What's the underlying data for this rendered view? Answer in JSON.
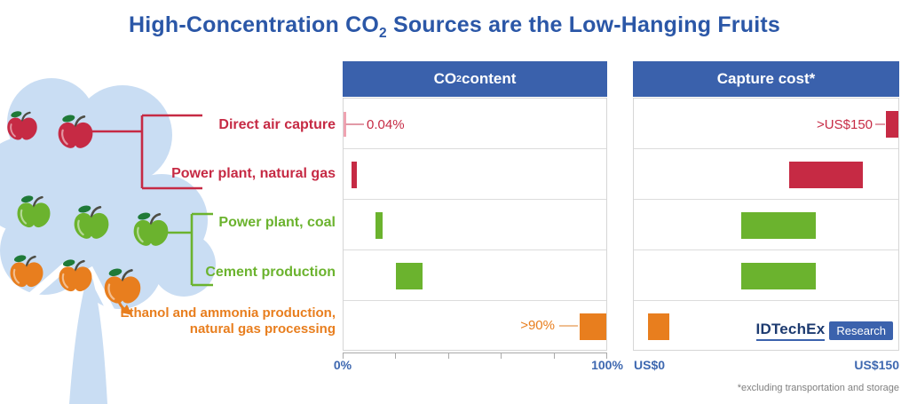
{
  "title": {
    "pre": "High-Concentration CO",
    "sub": "2",
    "post": " Sources are the Low-Hanging Fruits"
  },
  "labels": [
    {
      "text": "Direct air capture",
      "color": "red"
    },
    {
      "text": "Power plant, natural gas",
      "color": "red"
    },
    {
      "text": "Power plant, coal",
      "color": "green"
    },
    {
      "text": "Cement production",
      "color": "green"
    },
    {
      "line1": "Ethanol and ammonia production,",
      "line2": "natural gas processing",
      "color": "orange"
    }
  ],
  "panels": [
    {
      "header": {
        "pre": "CO",
        "sub": "2",
        "post": " content"
      },
      "axis_min": "0%",
      "axis_max": "100%"
    },
    {
      "header": {
        "pre": "Capture cost*",
        "sub": "",
        "post": ""
      },
      "axis_min": "US$0",
      "axis_max": "US$150"
    }
  ],
  "annotations": {
    "dac_co2": "0.04%",
    "ethanol_co2": ">90%",
    "dac_cost": ">US$150"
  },
  "logo": {
    "brand": "IDTechEx",
    "sub": "Research"
  },
  "footnote": "*excluding transportation and storage",
  "colors": {
    "red": "#C62A44",
    "green": "#6BB32E",
    "orange": "#E87E1E",
    "marker_pink": "#EFA3B1",
    "leader_pink": "#E29AA7",
    "leader_light_orange": "#EFBE91",
    "title_blue": "#2B57A7",
    "header_blue": "#3A61AC",
    "axis_blue": "#3E68B0",
    "tree_blue": "#C9DDF3",
    "logo_navy": "#1D3B70",
    "logo_box_blue": "#3B62AD",
    "grid_gray": "#DCDCDC",
    "footnote_gray": "#7F7F7F"
  },
  "chart_data": [
    {
      "type": "bar",
      "title": "CO2 content",
      "orientation": "horizontal",
      "categories": [
        "Direct air capture",
        "Power plant, natural gas",
        "Power plant, coal",
        "Cement production",
        "Ethanol and ammonia production, natural gas processing"
      ],
      "values": [
        [
          0,
          0.04
        ],
        [
          3,
          5
        ],
        [
          12,
          15
        ],
        [
          20,
          30
        ],
        [
          90,
          100
        ]
      ],
      "bar_styles": [
        "marker",
        "bar",
        "bar",
        "bar",
        "bar"
      ],
      "bar_colors": [
        "red",
        "red",
        "green",
        "green",
        "orange"
      ],
      "value_annotations": [
        "0.04%",
        null,
        null,
        null,
        ">90%"
      ],
      "xlim": [
        0,
        100
      ],
      "x_tick_labels": [
        "0%",
        "20%",
        "40%",
        "60%",
        "80%",
        "100%"
      ],
      "x_ticks_labeled": [
        "0%",
        "100%"
      ],
      "grid": "horizontal row separators"
    },
    {
      "type": "bar",
      "title": "Capture cost*",
      "orientation": "horizontal",
      "categories": [
        "Direct air capture",
        "Power plant, natural gas",
        "Power plant, coal",
        "Cement production",
        "Ethanol and ammonia production, natural gas processing"
      ],
      "values": [
        [
          143,
          150
        ],
        [
          88,
          130
        ],
        [
          61,
          103
        ],
        [
          61,
          103
        ],
        [
          8,
          20
        ]
      ],
      "bar_styles": [
        "bar",
        "bar",
        "bar",
        "bar",
        "bar"
      ],
      "bar_colors": [
        "red",
        "red",
        "green",
        "green",
        "orange"
      ],
      "value_annotations": [
        ">US$150",
        null,
        null,
        null,
        null
      ],
      "xlim": [
        0,
        150
      ],
      "x_ticks_labeled": [
        "US$0",
        "US$150"
      ],
      "note": "Direct air capture bar is clipped at the axis maximum (>US$150)",
      "grid": "horizontal row separators"
    }
  ]
}
